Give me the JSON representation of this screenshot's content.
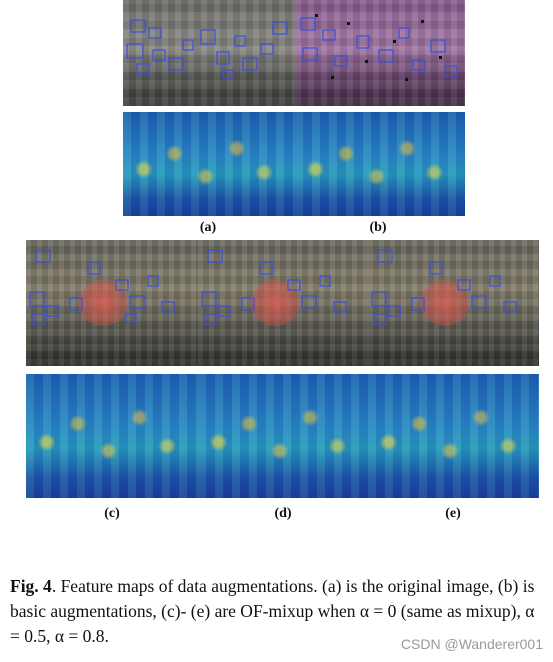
{
  "panel_labels": [
    "(a)",
    "(b)",
    "(c)",
    "(d)",
    "(e)"
  ],
  "caption": {
    "fig": "Fig. 4",
    "text": ". Feature maps of data augmentations. (a) is the original image, (b) is basic augmentations, (c)- (e) are OF-mixup when α = 0 (same as mixup), α = 0.5, α = 0.8."
  },
  "watermark": "CSDN @Wanderer001",
  "colors": {
    "box_stroke": "#3a4fe0",
    "heat_base": "#2b86c4",
    "mixup_blob": "#e05a50"
  }
}
